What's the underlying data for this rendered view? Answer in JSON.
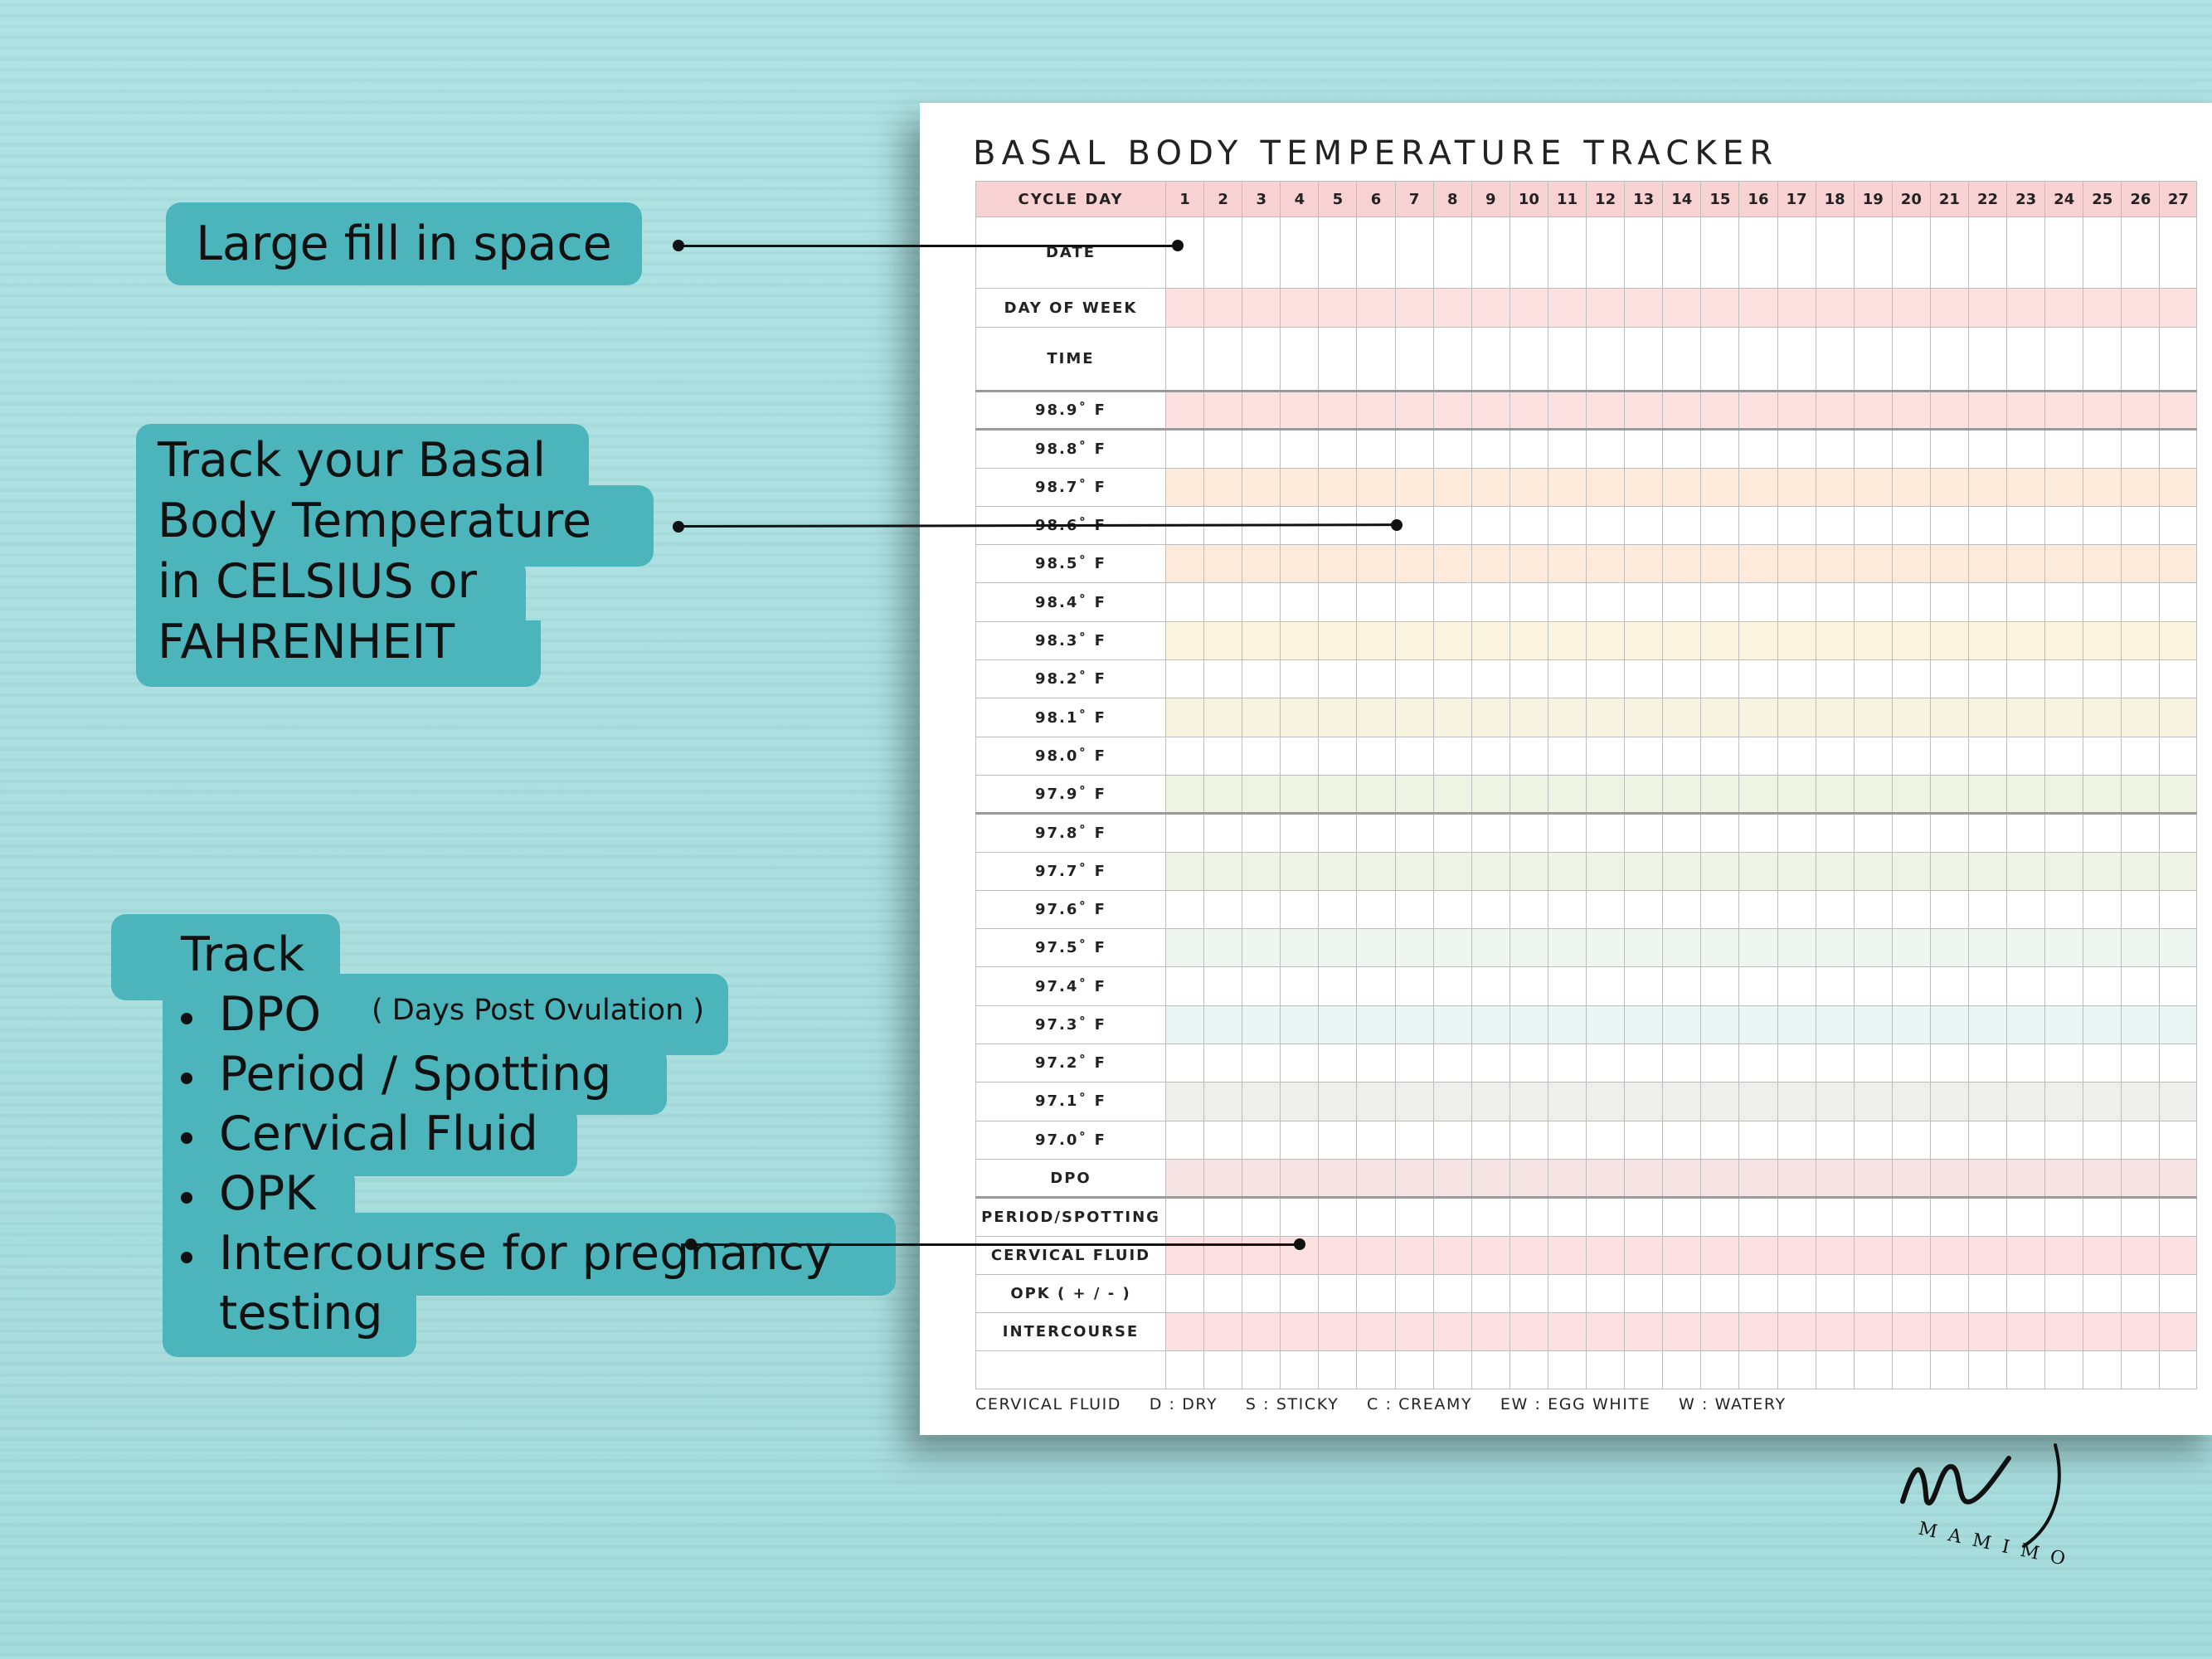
{
  "tracker": {
    "title": "BASAL BODY TEMPERATURE TRACKER",
    "cycle_day_label": "CYCLE DAY",
    "days": [
      1,
      2,
      3,
      4,
      5,
      6,
      7,
      8,
      9,
      10,
      11,
      12,
      13,
      14,
      15,
      16,
      17,
      18,
      19,
      20,
      21,
      22,
      23,
      24,
      25,
      26,
      27
    ],
    "rows": [
      {
        "label": "DATE",
        "color": "#ffffff"
      },
      {
        "label": "DAY OF WEEK",
        "color": "#fde0e0"
      },
      {
        "label": "TIME",
        "color": "#ffffff"
      },
      {
        "label": "98.9˚ F",
        "color": "#fde0e0"
      },
      {
        "label": "98.8˚ F",
        "color": "#ffffff"
      },
      {
        "label": "98.7˚ F",
        "color": "#feeadb"
      },
      {
        "label": "98.6˚ F",
        "color": "#ffffff"
      },
      {
        "label": "98.5˚ F",
        "color": "#feeadb"
      },
      {
        "label": "98.4˚ F",
        "color": "#ffffff"
      },
      {
        "label": "98.3˚ F",
        "color": "#fbf5df"
      },
      {
        "label": "98.2˚ F",
        "color": "#ffffff"
      },
      {
        "label": "98.1˚ F",
        "color": "#f6f4e1"
      },
      {
        "label": "98.0˚ F",
        "color": "#ffffff"
      },
      {
        "label": "97.9˚ F",
        "color": "#eef3e2"
      },
      {
        "label": "97.8˚ F",
        "color": "#ffffff"
      },
      {
        "label": "97.7˚ F",
        "color": "#eef4e5"
      },
      {
        "label": "97.6˚ F",
        "color": "#ffffff"
      },
      {
        "label": "97.5˚ F",
        "color": "#eef6ef"
      },
      {
        "label": "97.4˚ F",
        "color": "#ffffff"
      },
      {
        "label": "97.3˚ F",
        "color": "#e9f5f3"
      },
      {
        "label": "97.2˚ F",
        "color": "#ffffff"
      },
      {
        "label": "97.1˚ F",
        "color": "#eeefec"
      },
      {
        "label": "97.0˚ F",
        "color": "#ffffff"
      },
      {
        "label": "DPO",
        "color": "#f6e4e4"
      },
      {
        "label": "PERIOD/SPOTTING",
        "color": "#ffffff"
      },
      {
        "label": "CERVICAL FLUID",
        "color": "#fde0e2"
      },
      {
        "label": "OPK ( + / - )",
        "color": "#ffffff"
      },
      {
        "label": "INTERCOURSE",
        "color": "#fde0e2"
      },
      {
        "label": "",
        "color": "#ffffff"
      }
    ],
    "header_color": "#f8d2d3",
    "legend": [
      "CERVICAL FLUID",
      "D : DRY",
      "S : STICKY",
      "C : CREAMY",
      "EW : EGG WHITE",
      "W : WATERY"
    ]
  },
  "callouts": {
    "fill_space": "Large fill in space",
    "temperature": [
      "Track your Basal",
      "Body Temperature",
      "in CELSIUS or",
      "FAHRENHEIT"
    ],
    "track_title": "Track",
    "track_items": [
      "DPO",
      "Period / Spotting",
      "Cervical Fluid",
      "OPK",
      "Intercourse for pregnancy",
      "testing"
    ],
    "dpo_note": "( Days Post Ovulation )",
    "bubble_color": "#4bb5bb"
  },
  "logo": {
    "text": "MAMIMO"
  }
}
